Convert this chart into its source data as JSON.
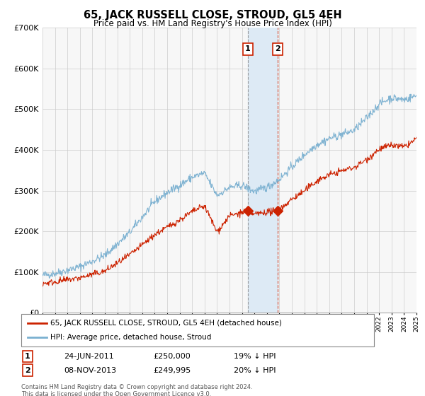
{
  "title": "65, JACK RUSSELL CLOSE, STROUD, GL5 4EH",
  "subtitle": "Price paid vs. HM Land Registry's House Price Index (HPI)",
  "footer1": "Contains HM Land Registry data © Crown copyright and database right 2024.",
  "footer2": "This data is licensed under the Open Government Licence v3.0.",
  "legend1": "65, JACK RUSSELL CLOSE, STROUD, GL5 4EH (detached house)",
  "legend2": "HPI: Average price, detached house, Stroud",
  "annotation1_label": "1",
  "annotation1_date": "24-JUN-2011",
  "annotation1_price": "£250,000",
  "annotation1_hpi": "19% ↓ HPI",
  "annotation2_label": "2",
  "annotation2_date": "08-NOV-2013",
  "annotation2_price": "£249,995",
  "annotation2_hpi": "20% ↓ HPI",
  "sale1_year": 2011.48,
  "sale1_price": 250000,
  "sale2_year": 2013.85,
  "sale2_price": 249995,
  "vline1_year": 2011.48,
  "vline2_year": 2013.85,
  "ymax": 700000,
  "ymin": 0,
  "xmin": 1995,
  "xmax": 2025,
  "red_color": "#cc2200",
  "blue_color": "#7ab0d0",
  "shade_color": "#ddeaf5",
  "grid_color": "#cccccc",
  "vline_color": "#888888",
  "background_color": "#f7f7f7"
}
